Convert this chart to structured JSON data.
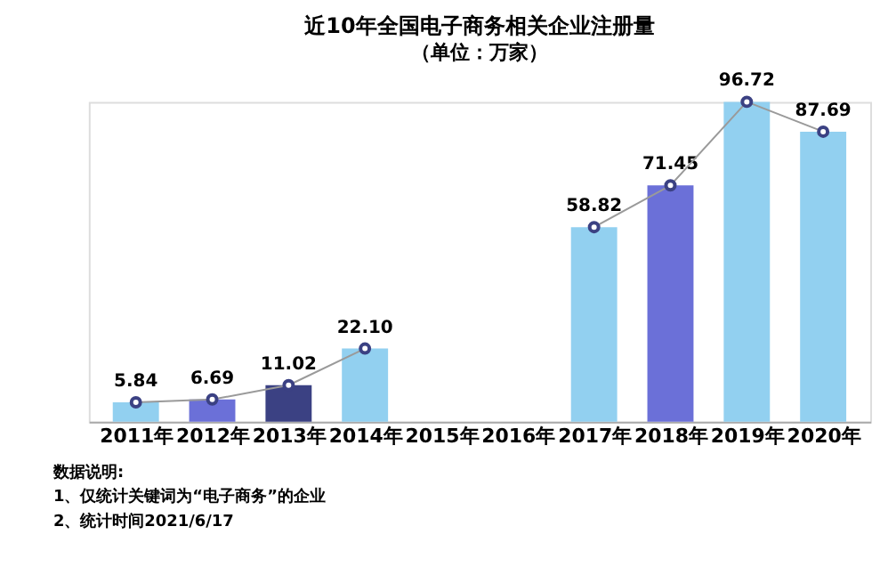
{
  "chart_data": {
    "type": "bar",
    "title": "近10年全国电子商务相关企业注册量",
    "subtitle": "（单位：万家）",
    "categories": [
      "2011年",
      "2012年",
      "2013年",
      "2014年",
      "2015年",
      "2016年",
      "2017年",
      "2018年",
      "2019年",
      "2020年"
    ],
    "series": [
      {
        "colors": [
          "#92d0f0",
          "#6b70d8",
          "#3b4183",
          "#92d0f0",
          "#6b70d8",
          "#3b4183",
          "#92d0f0",
          "#6b70d8",
          "#92d0f0",
          "#92d0f0"
        ],
        "values": [
          5.84,
          6.69,
          11.02,
          22.1,
          null,
          null,
          58.82,
          71.45,
          96.72,
          87.69
        ],
        "value_labels": [
          "5.84",
          "6.69",
          "11.02",
          "22.10",
          null,
          null,
          "58.82",
          "71.45",
          "96.72",
          "87.69"
        ]
      },
      {
        "type": "line",
        "color": "#9a9a9a",
        "marker": "circle",
        "values": [
          5.84,
          6.69,
          11.02,
          22.1,
          null,
          null,
          58.82,
          71.45,
          96.72,
          87.69
        ]
      }
    ],
    "grid": false,
    "annotations": [
      "数据说明:",
      "1、仅统计关键词为“电子商务”的企业",
      "2、统计时间2021/6/17"
    ]
  }
}
